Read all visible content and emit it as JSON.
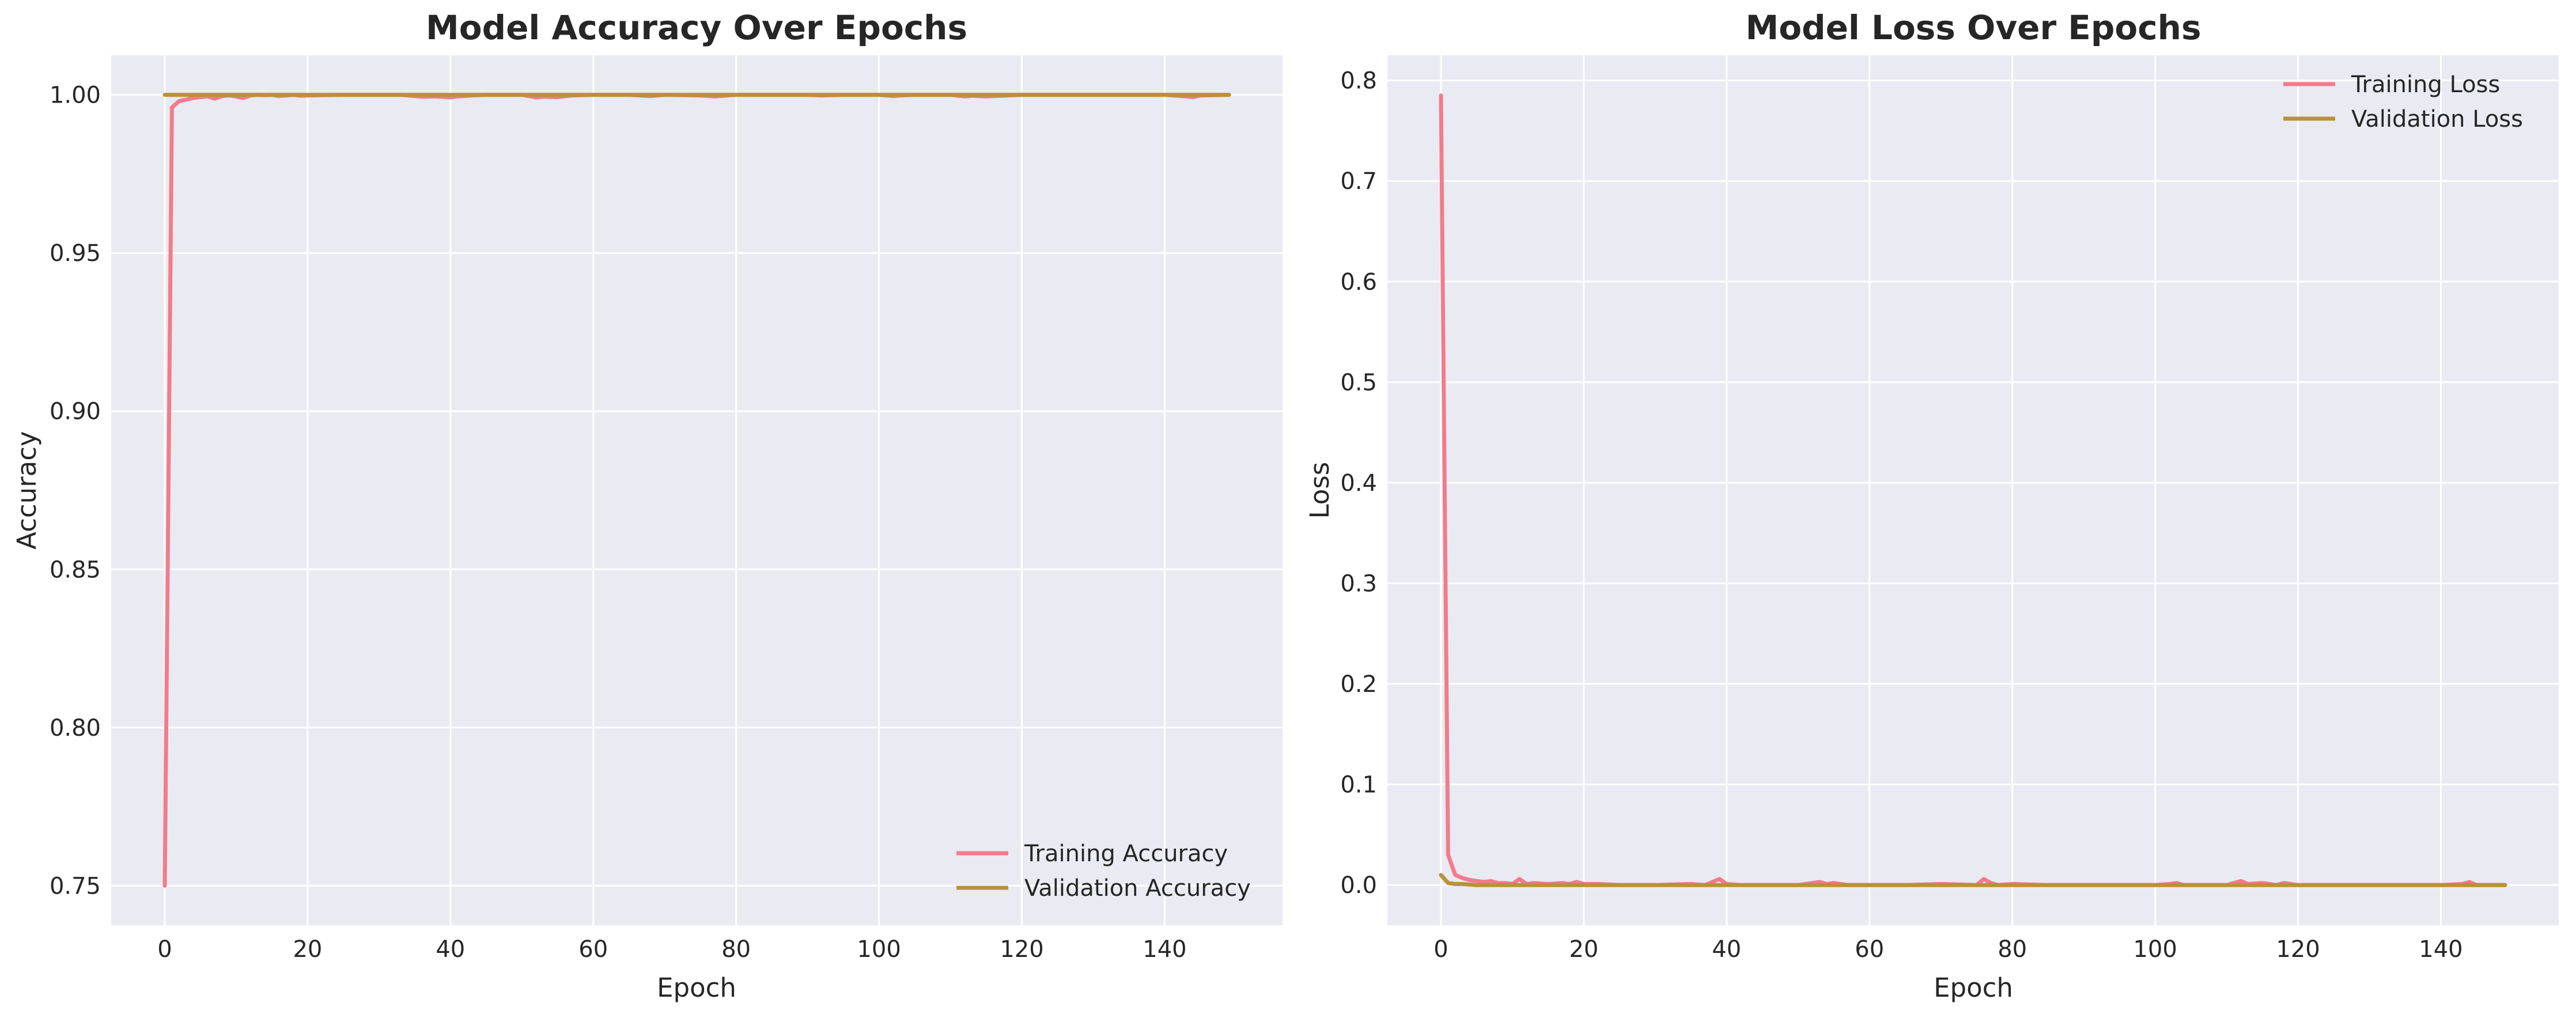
{
  "colors": {
    "training": "#f37b8b",
    "validation": "#b9913a",
    "plot_background": "#eaeaf2",
    "grid": "#ffffff"
  },
  "chart_data": [
    {
      "type": "line",
      "title": "Model Accuracy Over Epochs",
      "xlabel": "Epoch",
      "ylabel": "Accuracy",
      "xlim": [
        -7.5,
        156.5
      ],
      "ylim": [
        0.7375,
        1.0125
      ],
      "xticks": [
        0,
        20,
        40,
        60,
        80,
        100,
        120,
        140
      ],
      "xtick_labels": [
        "0",
        "20",
        "40",
        "60",
        "80",
        "100",
        "120",
        "140"
      ],
      "yticks": [
        0.75,
        0.8,
        0.85,
        0.9,
        0.95,
        1.0
      ],
      "ytick_labels": [
        "0.75",
        "0.80",
        "0.85",
        "0.90",
        "0.95",
        "1.00"
      ],
      "grid": true,
      "legend_position": "lower-right",
      "series": [
        {
          "name": "Training Accuracy",
          "color_key": "training",
          "x": [
            0,
            1,
            2,
            3,
            4,
            5,
            6,
            7,
            8,
            9,
            10,
            11,
            12,
            13,
            14,
            15,
            16,
            17,
            18,
            19,
            20,
            25,
            30,
            33,
            35,
            36,
            38,
            40,
            41,
            43,
            45,
            50,
            52,
            53,
            55,
            57,
            60,
            65,
            68,
            70,
            75,
            77,
            80,
            85,
            90,
            92,
            95,
            100,
            102,
            103,
            105,
            110,
            112,
            113,
            115,
            118,
            120,
            125,
            130,
            135,
            140,
            143,
            144,
            145,
            149
          ],
          "y": [
            0.75,
            0.996,
            0.998,
            0.9985,
            0.999,
            0.9993,
            0.9995,
            0.9988,
            0.9996,
            0.9998,
            0.9995,
            0.999,
            0.9998,
            1.0,
            0.9999,
            1.0,
            0.9996,
            0.9998,
            1.0,
            0.9997,
            0.9998,
            1.0,
            1.0,
            1.0,
            0.9996,
            0.9994,
            0.9995,
            0.9992,
            0.9995,
            0.9998,
            1.0,
            1.0,
            0.9992,
            0.9994,
            0.9993,
            0.9998,
            1.0,
            1.0,
            0.9996,
            1.0,
            0.9998,
            0.9995,
            1.0,
            1.0,
            1.0,
            0.9998,
            1.0,
            1.0,
            0.9996,
            0.9998,
            1.0,
            1.0,
            0.9995,
            0.9997,
            0.9995,
            0.9998,
            1.0,
            1.0,
            1.0,
            1.0,
            1.0,
            0.9995,
            0.9993,
            0.9998,
            1.0
          ]
        },
        {
          "name": "Validation Accuracy",
          "color_key": "validation",
          "x": [
            0,
            10,
            20,
            30,
            40,
            50,
            60,
            70,
            80,
            90,
            100,
            110,
            120,
            130,
            140,
            149
          ],
          "y": [
            1.0,
            1.0,
            1.0,
            1.0,
            1.0,
            1.0,
            1.0,
            1.0,
            1.0,
            1.0,
            1.0,
            1.0,
            1.0,
            1.0,
            1.0,
            1.0
          ]
        }
      ]
    },
    {
      "type": "line",
      "title": "Model Loss Over Epochs",
      "xlabel": "Epoch",
      "ylabel": "Loss",
      "xlim": [
        -7.5,
        156.5
      ],
      "ylim": [
        -0.04,
        0.825
      ],
      "xticks": [
        0,
        20,
        40,
        60,
        80,
        100,
        120,
        140
      ],
      "xtick_labels": [
        "0",
        "20",
        "40",
        "60",
        "80",
        "100",
        "120",
        "140"
      ],
      "yticks": [
        0.0,
        0.1,
        0.2,
        0.3,
        0.4,
        0.5,
        0.6,
        0.7,
        0.8
      ],
      "ytick_labels": [
        "0.0",
        "0.1",
        "0.2",
        "0.3",
        "0.4",
        "0.5",
        "0.6",
        "0.7",
        "0.8"
      ],
      "grid": true,
      "legend_position": "upper-right",
      "series": [
        {
          "name": "Training Loss",
          "color_key": "training",
          "x": [
            0,
            1,
            2,
            3,
            4,
            5,
            6,
            7,
            8,
            9,
            10,
            11,
            12,
            13,
            15,
            17,
            18,
            19,
            20,
            22,
            25,
            30,
            35,
            37,
            38,
            39,
            40,
            42,
            45,
            50,
            52,
            53,
            54,
            55,
            57,
            60,
            65,
            70,
            75,
            76,
            77,
            78,
            80,
            85,
            90,
            95,
            100,
            102,
            103,
            104,
            110,
            111,
            112,
            113,
            115,
            117,
            118,
            119,
            120,
            125,
            130,
            135,
            140,
            143,
            144,
            145,
            149
          ],
          "y": [
            0.785,
            0.03,
            0.01,
            0.007,
            0.005,
            0.004,
            0.003,
            0.004,
            0.002,
            0.002,
            0.001,
            0.006,
            0.001,
            0.002,
            0.001,
            0.002,
            0.001,
            0.003,
            0.001,
            0.001,
            0.0,
            0.0,
            0.001,
            0.0,
            0.003,
            0.006,
            0.001,
            0.0,
            0.0,
            0.0,
            0.002,
            0.003,
            0.001,
            0.002,
            0.0,
            0.0,
            0.0,
            0.001,
            0.0,
            0.006,
            0.002,
            0.0,
            0.001,
            0.0,
            0.0,
            0.0,
            0.0,
            0.001,
            0.002,
            0.0,
            0.0,
            0.002,
            0.004,
            0.001,
            0.002,
            0.0,
            0.002,
            0.001,
            0.0,
            0.0,
            0.0,
            0.0,
            0.0,
            0.001,
            0.003,
            0.0,
            0.0
          ]
        },
        {
          "name": "Validation Loss",
          "color_key": "validation",
          "x": [
            0,
            1,
            2,
            3,
            5,
            10,
            20,
            40,
            60,
            80,
            100,
            120,
            140,
            149
          ],
          "y": [
            0.01,
            0.002,
            0.001,
            0.001,
            0.0,
            0.0,
            0.0,
            0.0,
            0.0,
            0.0,
            0.0,
            0.0,
            0.0,
            0.0
          ]
        }
      ]
    }
  ]
}
